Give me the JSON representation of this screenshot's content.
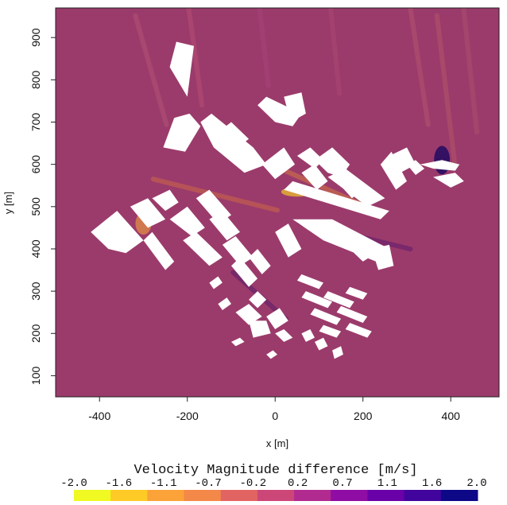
{
  "chart_data": {
    "type": "heatmap",
    "title": "",
    "xlabel": "x [m]",
    "ylabel": "y [m]",
    "xlim": [
      -500,
      510
    ],
    "ylim": [
      50,
      970
    ],
    "x_ticks": [
      -400,
      -200,
      0,
      200,
      400
    ],
    "y_ticks": [
      100,
      200,
      300,
      400,
      500,
      600,
      700,
      800,
      900
    ],
    "grid": false,
    "background_value": 0.4,
    "colorbar": {
      "title": "Velocity Magnitude difference [m/s]",
      "range": [
        -2.0,
        2.0
      ],
      "tick_labels": [
        "-2.0",
        "-1.6",
        "-1.1",
        "-0.7",
        "-0.2",
        "0.2",
        "0.7",
        "1.1",
        "1.6",
        "2.0"
      ],
      "colors": [
        "#f0f921",
        "#fdca26",
        "#fba238",
        "#f48849",
        "#e16462",
        "#cc4778",
        "#b12a90",
        "#8f0da4",
        "#6a00a8",
        "#41049d",
        "#0d0887"
      ]
    },
    "buildings_note": "white building footprints (masked cells)",
    "buildings": [
      {
        "poly": [
          [
            -240,
            830
          ],
          [
            -200,
            760
          ],
          [
            -185,
            880
          ],
          [
            -225,
            890
          ]
        ]
      },
      {
        "poly": [
          [
            -255,
            640
          ],
          [
            -230,
            710
          ],
          [
            -195,
            720
          ],
          [
            -170,
            690
          ],
          [
            -205,
            630
          ]
        ]
      },
      {
        "poly": [
          [
            -170,
            700
          ],
          [
            -145,
            720
          ],
          [
            -50,
            640
          ],
          [
            -20,
            600
          ],
          [
            -70,
            580
          ],
          [
            -140,
            640
          ]
        ]
      },
      {
        "poly": [
          [
            -125,
            680
          ],
          [
            -100,
            700
          ],
          [
            -60,
            660
          ],
          [
            -85,
            640
          ]
        ]
      },
      {
        "poly": [
          [
            -30,
            600
          ],
          [
            20,
            640
          ],
          [
            45,
            600
          ],
          [
            0,
            565
          ]
        ]
      },
      {
        "poly": [
          [
            -40,
            740
          ],
          [
            -20,
            760
          ],
          [
            20,
            740
          ],
          [
            60,
            720
          ],
          [
            40,
            690
          ],
          [
            0,
            700
          ]
        ]
      },
      {
        "poly": [
          [
            20,
            760
          ],
          [
            60,
            770
          ],
          [
            70,
            720
          ],
          [
            35,
            700
          ]
        ]
      },
      {
        "poly": [
          [
            50,
            620
          ],
          [
            80,
            640
          ],
          [
            110,
            610
          ],
          [
            90,
            590
          ]
        ]
      },
      {
        "poly": [
          [
            90,
            610
          ],
          [
            130,
            640
          ],
          [
            170,
            600
          ],
          [
            150,
            570
          ],
          [
            120,
            580
          ]
        ]
      },
      {
        "poly": [
          [
            120,
            570
          ],
          [
            160,
            590
          ],
          [
            250,
            520
          ],
          [
            210,
            500
          ]
        ]
      },
      {
        "poly": [
          [
            20,
            540
          ],
          [
            40,
            560
          ],
          [
            260,
            490
          ],
          [
            240,
            470
          ]
        ]
      },
      {
        "poly": [
          [
            60,
            580
          ],
          [
            90,
            600
          ],
          [
            120,
            560
          ],
          [
            95,
            540
          ]
        ]
      },
      {
        "poly": [
          [
            140,
            560
          ],
          [
            170,
            580
          ],
          [
            200,
            540
          ],
          [
            175,
            520
          ]
        ]
      },
      {
        "poly": [
          [
            240,
            600
          ],
          [
            265,
            630
          ],
          [
            300,
            560
          ],
          [
            275,
            540
          ]
        ]
      },
      {
        "poly": [
          [
            260,
            620
          ],
          [
            300,
            640
          ],
          [
            320,
            600
          ],
          [
            285,
            580
          ]
        ]
      },
      {
        "poly": [
          [
            300,
            600
          ],
          [
            320,
            610
          ],
          [
            340,
            590
          ],
          [
            320,
            575
          ]
        ]
      },
      {
        "poly": [
          [
            330,
            600
          ],
          [
            380,
            610
          ],
          [
            420,
            600
          ],
          [
            410,
            585
          ],
          [
            360,
            590
          ]
        ]
      },
      {
        "poly": [
          [
            360,
            570
          ],
          [
            410,
            580
          ],
          [
            430,
            560
          ],
          [
            400,
            545
          ]
        ]
      },
      {
        "poly": [
          [
            -330,
            500
          ],
          [
            -290,
            520
          ],
          [
            -250,
            470
          ],
          [
            -290,
            450
          ]
        ]
      },
      {
        "poly": [
          [
            -420,
            440
          ],
          [
            -360,
            490
          ],
          [
            -300,
            420
          ],
          [
            -340,
            390
          ],
          [
            -380,
            400
          ]
        ]
      },
      {
        "poly": [
          [
            -300,
            420
          ],
          [
            -280,
            440
          ],
          [
            -230,
            370
          ],
          [
            -250,
            350
          ]
        ]
      },
      {
        "poly": [
          [
            -280,
            520
          ],
          [
            -240,
            540
          ],
          [
            -220,
            510
          ],
          [
            -250,
            490
          ]
        ]
      },
      {
        "poly": [
          [
            -240,
            470
          ],
          [
            -200,
            500
          ],
          [
            -160,
            450
          ],
          [
            -190,
            430
          ]
        ]
      },
      {
        "poly": [
          [
            -210,
            420
          ],
          [
            -180,
            440
          ],
          [
            -120,
            380
          ],
          [
            -150,
            360
          ]
        ]
      },
      {
        "poly": [
          [
            -180,
            520
          ],
          [
            -150,
            540
          ],
          [
            -100,
            480
          ],
          [
            -130,
            460
          ]
        ]
      },
      {
        "poly": [
          [
            -150,
            470
          ],
          [
            -120,
            490
          ],
          [
            -80,
            440
          ],
          [
            -110,
            420
          ]
        ]
      },
      {
        "poly": [
          [
            -120,
            410
          ],
          [
            -90,
            430
          ],
          [
            -50,
            380
          ],
          [
            -80,
            360
          ]
        ]
      },
      {
        "poly": [
          [
            -100,
            360
          ],
          [
            -80,
            380
          ],
          [
            -40,
            330
          ],
          [
            -60,
            310
          ]
        ]
      },
      {
        "poly": [
          [
            -60,
            380
          ],
          [
            -40,
            400
          ],
          [
            -10,
            360
          ],
          [
            -30,
            340
          ]
        ]
      },
      {
        "poly": [
          [
            0,
            440
          ],
          [
            30,
            460
          ],
          [
            60,
            400
          ],
          [
            30,
            380
          ]
        ]
      },
      {
        "poly": [
          [
            40,
            470
          ],
          [
            130,
            470
          ],
          [
            260,
            400
          ],
          [
            230,
            370
          ],
          [
            110,
            420
          ]
        ]
      },
      {
        "poly": [
          [
            150,
            420
          ],
          [
            180,
            440
          ],
          [
            230,
            390
          ],
          [
            200,
            370
          ]
        ]
      },
      {
        "poly": [
          [
            220,
            400
          ],
          [
            260,
            410
          ],
          [
            270,
            360
          ],
          [
            235,
            350
          ]
        ]
      },
      {
        "poly": [
          [
            -150,
            320
          ],
          [
            -130,
            335
          ],
          [
            -120,
            320
          ],
          [
            -140,
            305
          ]
        ]
      },
      {
        "poly": [
          [
            -130,
            270
          ],
          [
            -110,
            285
          ],
          [
            -100,
            270
          ],
          [
            -120,
            255
          ]
        ]
      },
      {
        "poly": [
          [
            -60,
            280
          ],
          [
            -40,
            300
          ],
          [
            -20,
            280
          ],
          [
            -40,
            260
          ]
        ]
      },
      {
        "poly": [
          [
            -90,
            250
          ],
          [
            -60,
            270
          ],
          [
            -30,
            240
          ],
          [
            -60,
            220
          ]
        ]
      },
      {
        "poly": [
          [
            -60,
            230
          ],
          [
            -20,
            230
          ],
          [
            -10,
            200
          ],
          [
            -50,
            190
          ]
        ]
      },
      {
        "poly": [
          [
            -20,
            240
          ],
          [
            10,
            260
          ],
          [
            30,
            230
          ],
          [
            0,
            210
          ]
        ]
      },
      {
        "poly": [
          [
            0,
            200
          ],
          [
            20,
            210
          ],
          [
            40,
            190
          ],
          [
            20,
            180
          ]
        ]
      },
      {
        "poly": [
          [
            -100,
            180
          ],
          [
            -80,
            190
          ],
          [
            -70,
            180
          ],
          [
            -90,
            170
          ]
        ]
      },
      {
        "poly": [
          [
            -20,
            150
          ],
          [
            -5,
            160
          ],
          [
            5,
            150
          ],
          [
            -10,
            140
          ]
        ]
      },
      {
        "poly": [
          [
            60,
            340
          ],
          [
            110,
            320
          ],
          [
            100,
            305
          ],
          [
            50,
            325
          ]
        ]
      },
      {
        "poly": [
          [
            70,
            300
          ],
          [
            130,
            275
          ],
          [
            120,
            260
          ],
          [
            60,
            285
          ]
        ]
      },
      {
        "poly": [
          [
            90,
            260
          ],
          [
            150,
            235
          ],
          [
            140,
            220
          ],
          [
            80,
            245
          ]
        ]
      },
      {
        "poly": [
          [
            110,
            220
          ],
          [
            150,
            205
          ],
          [
            140,
            190
          ],
          [
            100,
            205
          ]
        ]
      },
      {
        "poly": [
          [
            120,
            300
          ],
          [
            180,
            275
          ],
          [
            170,
            260
          ],
          [
            110,
            285
          ]
        ]
      },
      {
        "poly": [
          [
            150,
            265
          ],
          [
            210,
            240
          ],
          [
            200,
            225
          ],
          [
            140,
            250
          ]
        ]
      },
      {
        "poly": [
          [
            170,
            225
          ],
          [
            220,
            205
          ],
          [
            210,
            190
          ],
          [
            160,
            210
          ]
        ]
      },
      {
        "poly": [
          [
            170,
            310
          ],
          [
            210,
            295
          ],
          [
            200,
            280
          ],
          [
            160,
            295
          ]
        ]
      },
      {
        "poly": [
          [
            60,
            200
          ],
          [
            80,
            210
          ],
          [
            90,
            190
          ],
          [
            70,
            180
          ]
        ]
      },
      {
        "poly": [
          [
            90,
            180
          ],
          [
            110,
            190
          ],
          [
            120,
            170
          ],
          [
            100,
            160
          ]
        ]
      },
      {
        "poly": [
          [
            130,
            160
          ],
          [
            150,
            170
          ],
          [
            155,
            150
          ],
          [
            135,
            140
          ]
        ]
      }
    ]
  }
}
